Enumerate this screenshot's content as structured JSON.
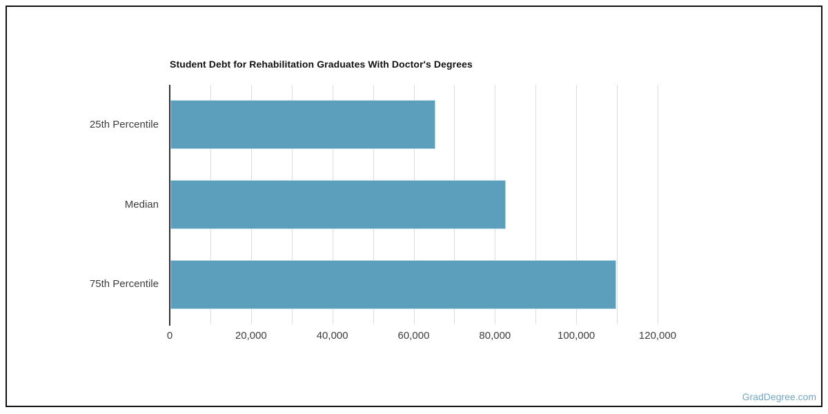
{
  "page": {
    "watermark": "GradDegree.com",
    "watermark_color": "#74a6c1",
    "frame_border_color": "#0f0f0f",
    "background": "#ffffff"
  },
  "chart_data": {
    "type": "bar",
    "orientation": "horizontal",
    "title": "Student Debt for Rehabilitation Graduates With Doctor's Degrees",
    "categories": [
      "25th Percentile",
      "Median",
      "75th Percentile"
    ],
    "values": [
      65250,
      82500,
      109600
    ],
    "xlabel": "",
    "ylabel": "",
    "xlim": [
      0,
      124500
    ],
    "x_ticks": [
      0,
      20000,
      40000,
      60000,
      80000,
      100000,
      120000
    ],
    "x_tick_labels": [
      "0",
      "20,000",
      "40,000",
      "60,000",
      "80,000",
      "100,000",
      "120,000"
    ],
    "gridline_interval": 10000,
    "gridline_max": 120000,
    "grid": true,
    "legend": false,
    "bar_color": "#5b9fbd",
    "bar_border_color": "#b3d7e3",
    "axis_color": "#2f2f2f",
    "grid_color": "#dcdcdc",
    "label_color": "#3d3d3d",
    "title_color": "#111111"
  }
}
